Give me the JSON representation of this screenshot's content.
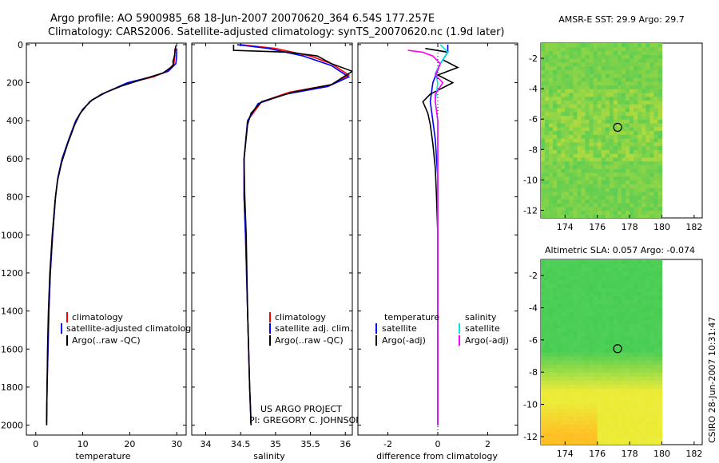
{
  "header": {
    "line1": "Argo profile: AO 5900985_68 18-Jun-2007 20070620_364 6.54S 177.257E",
    "line2": "Climatology: CARS2006. Satellite-adjusted climatology: synTS_20070620.nc (1.9d later)"
  },
  "side_label": "CSIRO 28-Jun-2007 10:31:47",
  "project": {
    "line1": "US ARGO PROJECT",
    "line2": "PI: GREGORY C. JOHNSON"
  },
  "colors": {
    "climatology": "#ff0000",
    "satellite": "#0000ff",
    "argo": "#000000",
    "sal_satellite": "#00e5e5",
    "sal_argo": "#ff00ff"
  },
  "chart_data": [
    {
      "type": "line",
      "xlabel": "temperature",
      "xlim": [
        -2,
        32
      ],
      "ylim": [
        0,
        2050
      ],
      "xticks": [
        0,
        10,
        20,
        30
      ],
      "yticks": [
        0,
        200,
        400,
        600,
        800,
        1000,
        1200,
        1400,
        1600,
        1800,
        2000
      ],
      "legend": [
        "climatology",
        "satellite-adjusted climatology",
        "Argo(..raw -QC)"
      ],
      "series": [
        {
          "name": "climatology",
          "color": "#ff0000",
          "points": [
            [
              29.6,
              20
            ],
            [
              29.6,
              60
            ],
            [
              29.4,
              100
            ],
            [
              28,
              140
            ],
            [
              25,
              170
            ],
            [
              20,
              200
            ],
            [
              15,
              250
            ],
            [
              12,
              290
            ],
            [
              10,
              340
            ],
            [
              8.5,
              400
            ],
            [
              7,
              500
            ],
            [
              5.6,
              600
            ],
            [
              4.7,
              700
            ],
            [
              4.2,
              800
            ],
            [
              3.6,
              1000
            ],
            [
              3.1,
              1200
            ],
            [
              2.8,
              1400
            ],
            [
              2.6,
              1600
            ],
            [
              2.4,
              1800
            ],
            [
              2.3,
              2000
            ]
          ]
        },
        {
          "name": "satellite-adjusted climatology",
          "color": "#0000ff",
          "points": [
            [
              30,
              20
            ],
            [
              30,
              60
            ],
            [
              29.8,
              100
            ],
            [
              28.2,
              140
            ],
            [
              24.5,
              170
            ],
            [
              19.5,
              200
            ],
            [
              15,
              250
            ],
            [
              12,
              290
            ],
            [
              10,
              340
            ],
            [
              8.5,
              400
            ],
            [
              7,
              500
            ],
            [
              5.6,
              600
            ],
            [
              4.7,
              700
            ],
            [
              4.2,
              800
            ],
            [
              3.6,
              1000
            ],
            [
              3.1,
              1200
            ],
            [
              2.8,
              1400
            ],
            [
              2.6,
              1600
            ],
            [
              2.4,
              1800
            ],
            [
              2.3,
              2000
            ]
          ]
        },
        {
          "name": "Argo(..raw -QC)",
          "color": "#000000",
          "points": [
            [
              29.8,
              5
            ],
            [
              29.5,
              60
            ],
            [
              29.2,
              90
            ],
            [
              29.3,
              110
            ],
            [
              27,
              150
            ],
            [
              23,
              180
            ],
            [
              18,
              220
            ],
            [
              14,
              260
            ],
            [
              11.5,
              300
            ],
            [
              9.5,
              360
            ],
            [
              8.3,
              420
            ],
            [
              6.8,
              520
            ],
            [
              5.5,
              620
            ],
            [
              4.6,
              720
            ],
            [
              4.1,
              820
            ],
            [
              3.5,
              1000
            ],
            [
              3.0,
              1200
            ],
            [
              2.7,
              1400
            ],
            [
              2.5,
              1600
            ],
            [
              2.4,
              1800
            ],
            [
              2.3,
              2000
            ]
          ]
        }
      ]
    },
    {
      "type": "line",
      "xlabel": "salinity",
      "xlim": [
        33.8,
        36.1
      ],
      "ylim": [
        0,
        2050
      ],
      "xticks": [
        34,
        34.5,
        35,
        35.5,
        36
      ],
      "legend": [
        "climatology",
        "satellite adj. clim.",
        "Argo(..raw -QC)"
      ],
      "series": [
        {
          "name": "climatology",
          "color": "#ff0000",
          "points": [
            [
              34.5,
              0
            ],
            [
              35,
              20
            ],
            [
              35.5,
              60
            ],
            [
              35.8,
              100
            ],
            [
              36.05,
              160
            ],
            [
              35.8,
              210
            ],
            [
              35.2,
              250
            ],
            [
              34.8,
              300
            ],
            [
              34.6,
              400
            ],
            [
              34.55,
              600
            ],
            [
              34.55,
              800
            ],
            [
              34.57,
              1000
            ],
            [
              34.6,
              1400
            ],
            [
              34.63,
              1800
            ],
            [
              34.65,
              2000
            ]
          ]
        },
        {
          "name": "satellite adj. clim.",
          "color": "#0000ff",
          "points": [
            [
              34.45,
              0
            ],
            [
              34.9,
              20
            ],
            [
              35.4,
              60
            ],
            [
              35.8,
              110
            ],
            [
              36.05,
              170
            ],
            [
              35.75,
              220
            ],
            [
              35.15,
              260
            ],
            [
              34.75,
              310
            ],
            [
              34.6,
              400
            ],
            [
              34.55,
              600
            ],
            [
              34.55,
              800
            ],
            [
              34.57,
              1000
            ],
            [
              34.6,
              1400
            ],
            [
              34.63,
              1800
            ],
            [
              34.65,
              2000
            ]
          ]
        },
        {
          "name": "Argo(..raw -QC)",
          "color": "#000000",
          "points": [
            [
              34.4,
              0
            ],
            [
              34.4,
              30
            ],
            [
              35.2,
              40
            ],
            [
              35.6,
              60
            ],
            [
              35.8,
              100
            ],
            [
              36.1,
              140
            ],
            [
              35.8,
              210
            ],
            [
              35.25,
              250
            ],
            [
              34.8,
              300
            ],
            [
              34.65,
              360
            ],
            [
              34.6,
              420
            ],
            [
              34.55,
              600
            ],
            [
              34.56,
              800
            ],
            [
              34.58,
              1000
            ],
            [
              34.6,
              1400
            ],
            [
              34.63,
              1800
            ],
            [
              34.65,
              2000
            ]
          ]
        }
      ]
    },
    {
      "type": "line",
      "xlabel": "difference from climatology",
      "xlim": [
        -3.2,
        3.2
      ],
      "ylim": [
        0,
        2050
      ],
      "xticks": [
        -2,
        0,
        2
      ],
      "legend_columns": [
        "temperature",
        "salinity"
      ],
      "legend": [
        "satellite",
        "Argo(-adj)",
        "satellite",
        "Argo(-adj)"
      ],
      "series": [
        {
          "name": "satellite",
          "group": "temperature",
          "color": "#0000ff",
          "points": [
            [
              0.4,
              0
            ],
            [
              0.4,
              40
            ],
            [
              0.1,
              100
            ],
            [
              -0.2,
              200
            ],
            [
              -0.3,
              300
            ],
            [
              -0.2,
              400
            ],
            [
              -0.1,
              500
            ],
            [
              0,
              700
            ],
            [
              0,
              1000
            ],
            [
              0,
              1500
            ],
            [
              0,
              2000
            ]
          ]
        },
        {
          "name": "Argo(-adj)",
          "group": "temperature",
          "color": "#000000",
          "points": [
            [
              -0.5,
              20
            ],
            [
              0.4,
              40
            ],
            [
              0.2,
              80
            ],
            [
              0.8,
              120
            ],
            [
              0,
              160
            ],
            [
              0.6,
              200
            ],
            [
              -0.3,
              260
            ],
            [
              -0.6,
              300
            ],
            [
              -0.4,
              360
            ],
            [
              -0.3,
              420
            ],
            [
              -0.2,
              520
            ],
            [
              -0.1,
              650
            ],
            [
              -0.05,
              800
            ],
            [
              0,
              1000
            ],
            [
              0,
              1200
            ],
            [
              0,
              1400
            ],
            [
              0,
              1800
            ],
            [
              0,
              2000
            ]
          ]
        },
        {
          "name": "satellite",
          "group": "salinity",
          "color": "#00e5e5",
          "points": [
            [
              0.1,
              0
            ],
            [
              0.4,
              40
            ],
            [
              0.1,
              100
            ],
            [
              -0.1,
              150
            ],
            [
              0,
              200
            ],
            [
              -0.1,
              300
            ],
            [
              0,
              400
            ],
            [
              0,
              600
            ],
            [
              0,
              1000
            ],
            [
              0,
              1500
            ],
            [
              0,
              2000
            ]
          ]
        },
        {
          "name": "Argo(-adj)",
          "group": "salinity",
          "color": "#ff00ff",
          "points": [
            [
              -1.2,
              30
            ],
            [
              -0.6,
              40
            ],
            [
              -0.2,
              60
            ],
            [
              0.1,
              100
            ],
            [
              -0.1,
              160
            ],
            [
              0.2,
              200
            ],
            [
              -0.1,
              260
            ],
            [
              -0.1,
              300
            ],
            [
              0,
              400
            ],
            [
              0,
              600
            ],
            [
              0,
              1000
            ],
            [
              0,
              2000
            ]
          ]
        }
      ]
    },
    {
      "type": "heatmap",
      "title": "AMSR-E SST: 29.9  Argo: 29.7",
      "xlim": [
        172.5,
        182.5
      ],
      "ylim": [
        -12.5,
        -1
      ],
      "xticks": [
        174,
        176,
        178,
        180,
        182
      ],
      "yticks": [
        -2,
        -4,
        -6,
        -8,
        -10,
        -12
      ],
      "data_extent": [
        172.5,
        180,
        -12.5,
        -1
      ],
      "marker": [
        177.257,
        -6.54
      ]
    },
    {
      "type": "heatmap",
      "title": "Altimetric SLA: 0.057  Argo: -0.074",
      "xlim": [
        172.5,
        182.5
      ],
      "ylim": [
        -12.5,
        -1
      ],
      "xticks": [
        174,
        176,
        178,
        180,
        182
      ],
      "yticks": [
        -2,
        -4,
        -6,
        -8,
        -10,
        -12
      ],
      "data_extent": [
        172.5,
        180,
        -12.5,
        -1
      ],
      "marker": [
        177.257,
        -6.54
      ]
    }
  ]
}
